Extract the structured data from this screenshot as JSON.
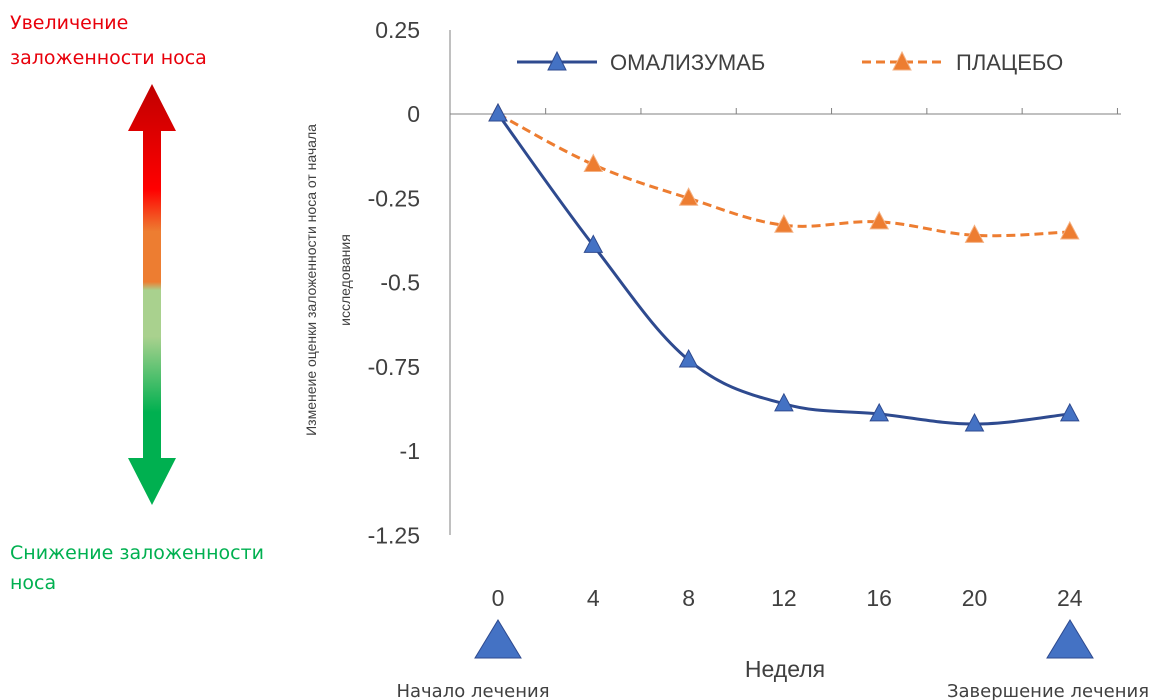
{
  "side_labels": {
    "increase": [
      "Увеличение",
      "заложенности носа"
    ],
    "decrease": [
      "Снижение заложенности",
      "носа"
    ]
  },
  "colors": {
    "increase": "#e8000b",
    "decrease": "#00b050",
    "omalizumab": "#2e4a8f",
    "omalizumab_marker": "#4472c4",
    "placebo": "#ed7d31"
  },
  "chart_data": {
    "type": "line",
    "xlabel": "Неделя",
    "ylabel": [
      "Изменеие оценки заложенности носа от начала",
      "исследования"
    ],
    "x": [
      0,
      4,
      8,
      12,
      16,
      20,
      24
    ],
    "ylim": [
      -1.25,
      0.25
    ],
    "yticks": [
      "0.25",
      "0",
      "-0.25",
      "-0.5",
      "-0.75",
      "-1",
      "-1.25"
    ],
    "ytick_values": [
      0.25,
      0,
      -0.25,
      -0.5,
      -0.75,
      -1,
      -1.25
    ],
    "legend_position": "top",
    "series": [
      {
        "name": "ОМАЛИЗУМАБ",
        "values": [
          0,
          -0.39,
          -0.73,
          -0.86,
          -0.89,
          -0.92,
          -0.89
        ],
        "style": "solid"
      },
      {
        "name": "ПЛАЦЕБО",
        "values": [
          0,
          -0.15,
          -0.25,
          -0.33,
          -0.32,
          -0.36,
          -0.35
        ],
        "style": "dashed"
      }
    ],
    "markers": {
      "start": "Начало лечения",
      "end": "Завершение лечения"
    }
  }
}
